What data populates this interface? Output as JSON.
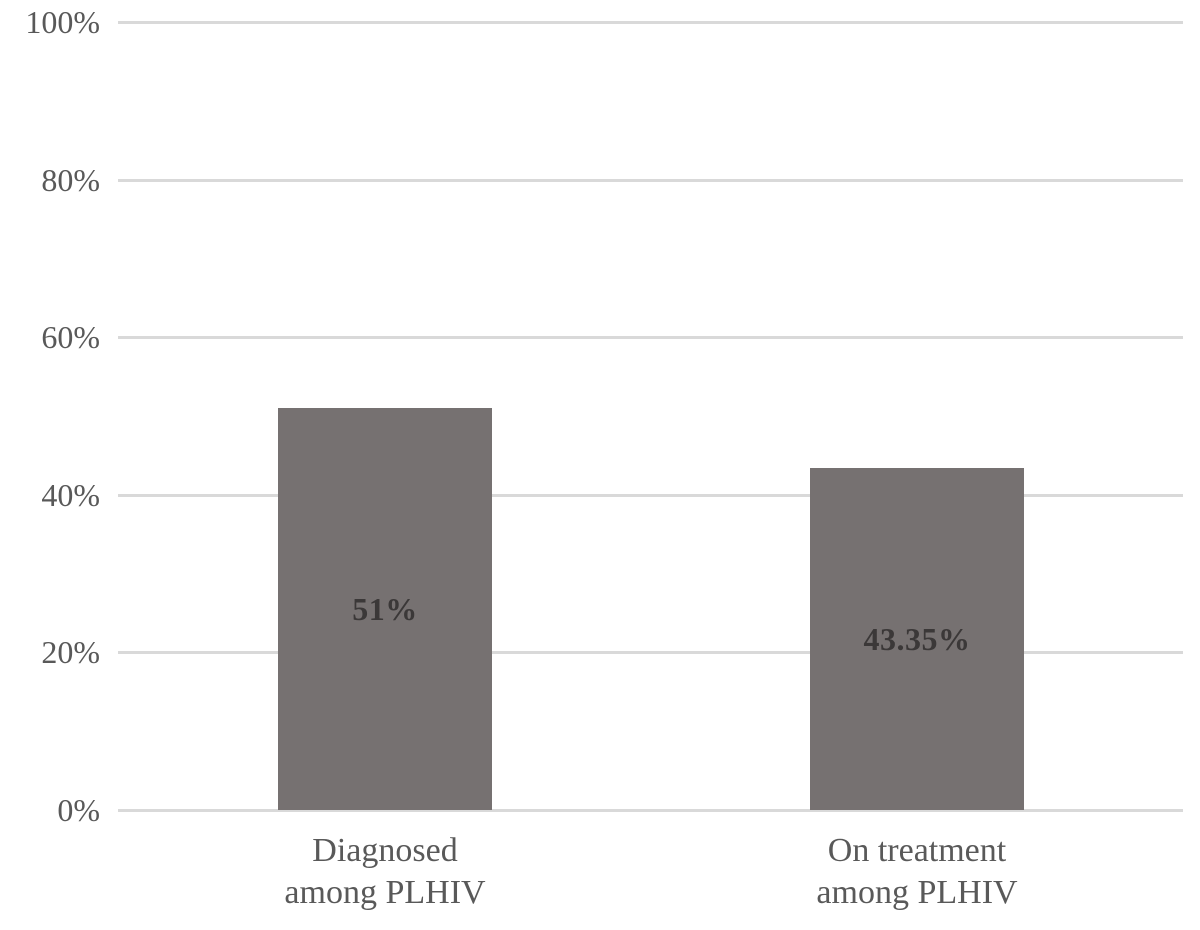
{
  "chart_data": {
    "type": "bar",
    "title": "",
    "xlabel": "",
    "ylabel": "",
    "categories": [
      "Diagnosed among PLHIV",
      "On treatment among PLHIV"
    ],
    "category_lines": [
      [
        "Diagnosed",
        "among PLHIV"
      ],
      [
        "On treatment",
        "among PLHIV"
      ]
    ],
    "values": [
      51,
      43.35
    ],
    "bar_labels": [
      "51%",
      "43.35%"
    ],
    "ylim": [
      0,
      100
    ],
    "yticks": [
      0,
      20,
      40,
      60,
      80,
      100
    ],
    "ytick_labels": [
      "0%",
      "20%",
      "40%",
      "60%",
      "80%",
      "100%"
    ],
    "grid": true,
    "legend": false,
    "colors": {
      "bar_fill": "#767171",
      "bar_value_label": "#3b3838",
      "gridline": "#d9d9d9",
      "axis_text": "#595959",
      "background": "#ffffff"
    }
  }
}
